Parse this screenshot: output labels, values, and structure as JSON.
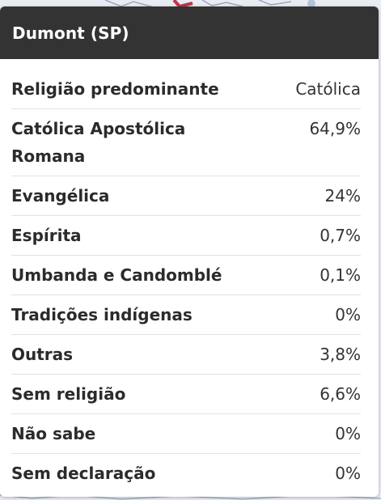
{
  "colors": {
    "header_bg": "#333333",
    "header_text": "#ffffff",
    "label_text": "#2b2b2b",
    "value_text": "#333333",
    "divider": "#e2e2e2",
    "map_accent": "#c0344a"
  },
  "popup": {
    "title": "Dumont (SP)",
    "rows": [
      {
        "label": "Religião predominante",
        "value": "Católica"
      },
      {
        "label": "Católica Apostólica Romana",
        "value": "64,9%"
      },
      {
        "label": "Evangélica",
        "value": "24%"
      },
      {
        "label": "Espírita",
        "value": "0,7%"
      },
      {
        "label": "Umbanda e Candomblé",
        "value": "0,1%"
      },
      {
        "label": "Tradições indígenas",
        "value": "0%"
      },
      {
        "label": "Outras",
        "value": "3,8%"
      },
      {
        "label": "Sem religião",
        "value": "6,6%"
      },
      {
        "label": "Não sabe",
        "value": "0%"
      },
      {
        "label": "Sem declaração",
        "value": "0%"
      }
    ]
  }
}
